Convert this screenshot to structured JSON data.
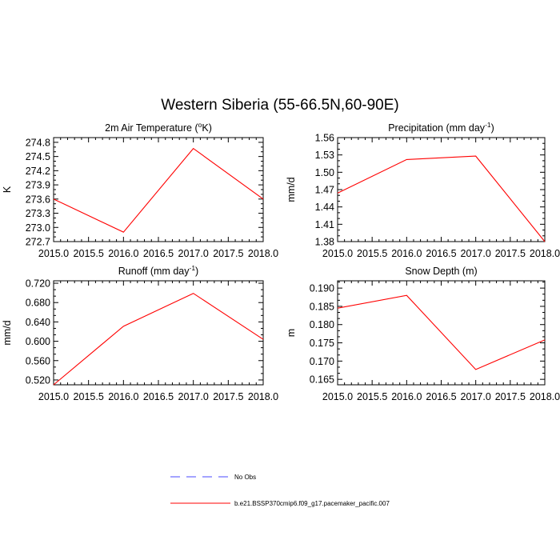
{
  "figure_title": "Western Siberia (55-66.5N,60-90E)",
  "colors": {
    "model": "#ff0000",
    "obs": "#4a4aff"
  },
  "legend": [
    {
      "label": "No Obs",
      "style": "dashed",
      "color": "#4a4aff"
    },
    {
      "label": "b.e21.BSSP370cmip6.f09_g17.pacemaker_pacific.007",
      "style": "solid",
      "color": "#ff0000"
    }
  ],
  "chart_data": [
    {
      "type": "line",
      "title": "2m Air Temperature (",
      "title_sup": "o",
      "title_tail": "K)",
      "xlabel": "",
      "ylabel": "K",
      "x": [
        2015.0,
        2016.0,
        2017.0,
        2018.0
      ],
      "xlim": [
        2015.0,
        2018.0
      ],
      "xticks": [
        "2015.0",
        "2015.5",
        "2016.0",
        "2016.5",
        "2017.0",
        "2017.5",
        "2018.0"
      ],
      "ylim": [
        272.7,
        274.9
      ],
      "yticks": [
        "272.7",
        "273.0",
        "273.3",
        "273.6",
        "273.9",
        "274.2",
        "274.5",
        "274.8"
      ],
      "series": [
        {
          "name": "b.e21.BSSP370cmip6.f09_g17.pacemaker_pacific.007",
          "values": [
            273.6,
            272.9,
            274.67,
            273.6
          ]
        }
      ]
    },
    {
      "type": "line",
      "title": "Precipitation (mm day",
      "title_sup": "-1",
      "title_tail": ")",
      "xlabel": "",
      "ylabel": "mm/d",
      "x": [
        2015.0,
        2016.0,
        2017.0,
        2018.0
      ],
      "xlim": [
        2015.0,
        2018.0
      ],
      "xticks": [
        "2015.0",
        "2015.5",
        "2016.0",
        "2016.5",
        "2017.0",
        "2017.5",
        "2018.0"
      ],
      "ylim": [
        1.38,
        1.56
      ],
      "yticks": [
        "1.38",
        "1.41",
        "1.44",
        "1.47",
        "1.50",
        "1.53",
        "1.56"
      ],
      "series": [
        {
          "name": "b.e21.BSSP370cmip6.f09_g17.pacemaker_pacific.007",
          "values": [
            1.464,
            1.522,
            1.528,
            1.38
          ]
        }
      ]
    },
    {
      "type": "line",
      "title": "Runoff (mm day",
      "title_sup": "-1",
      "title_tail": ")",
      "xlabel": "",
      "ylabel": "mm/d",
      "x": [
        2015.0,
        2016.0,
        2017.0,
        2018.0
      ],
      "xlim": [
        2015.0,
        2018.0
      ],
      "xticks": [
        "2015.0",
        "2015.5",
        "2016.0",
        "2016.5",
        "2017.0",
        "2017.5",
        "2018.0"
      ],
      "ylim": [
        0.51,
        0.725
      ],
      "yticks": [
        "0.520",
        "0.560",
        "0.600",
        "0.640",
        "0.680",
        "0.720"
      ],
      "series": [
        {
          "name": "b.e21.BSSP370cmip6.f09_g17.pacemaker_pacific.007",
          "values": [
            0.51,
            0.631,
            0.699,
            0.604
          ]
        }
      ]
    },
    {
      "type": "line",
      "title": "Snow Depth (m)",
      "title_sup": "",
      "title_tail": "",
      "xlabel": "",
      "ylabel": "m",
      "x": [
        2015.0,
        2016.0,
        2017.0,
        2018.0
      ],
      "xlim": [
        2015.0,
        2018.0
      ],
      "xticks": [
        "2015.0",
        "2015.5",
        "2016.0",
        "2016.5",
        "2017.0",
        "2017.5",
        "2018.0"
      ],
      "ylim": [
        0.1635,
        0.192
      ],
      "yticks": [
        "0.165",
        "0.170",
        "0.175",
        "0.180",
        "0.185",
        "0.190"
      ],
      "series": [
        {
          "name": "b.e21.BSSP370cmip6.f09_g17.pacemaker_pacific.007",
          "values": [
            0.1845,
            0.188,
            0.1677,
            0.1758
          ]
        }
      ]
    }
  ]
}
